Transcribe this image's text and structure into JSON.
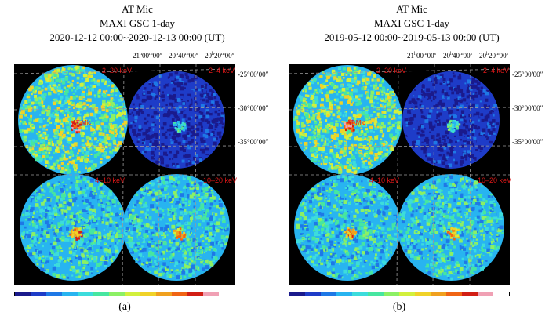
{
  "panels": [
    {
      "id": "a",
      "object": "AT Mic",
      "instrument": "MAXI GSC 1-day",
      "time_range": "2020-12-12 00:00~2020-12-13 00:00 (UT)",
      "label": "(a)",
      "source_label": "AT Mic",
      "seed": 11
    },
    {
      "id": "b",
      "object": "AT Mic",
      "instrument": "MAXI GSC 1-day",
      "time_range": "2019-05-12 00:00~2019-05-13 00:00 (UT)",
      "label": "(b)",
      "source_label": "AT Mic",
      "seed": 29
    }
  ],
  "ra_ticks": [
    "21h00m00s",
    "20h40m00s",
    "20h20m00s"
  ],
  "ra_ticks_parts": [
    {
      "h": "21",
      "m": "00",
      "s": "00"
    },
    {
      "h": "20",
      "m": "40",
      "s": "00"
    },
    {
      "h": "20",
      "m": "20",
      "s": "00"
    }
  ],
  "dec_ticks": [
    "-25°00′00″",
    "-30°00′00″",
    "-35°00′00″"
  ],
  "bands": {
    "top_left": "2–20 keV",
    "top_right": "2–4 keV",
    "bottom_left": "4–10 keV",
    "bottom_right": "10–20 keV"
  },
  "colorbar": [
    "#1a1a8c",
    "#1e3cc8",
    "#1e78e6",
    "#28b4f0",
    "#3cdcdc",
    "#46e6a0",
    "#8cf064",
    "#d2f03c",
    "#f0d228",
    "#f0a01e",
    "#f06414",
    "#d21e14",
    "#f0a0b4",
    "#ffffff"
  ],
  "colors": {
    "background": "#000000",
    "label_red": "#e01818"
  }
}
